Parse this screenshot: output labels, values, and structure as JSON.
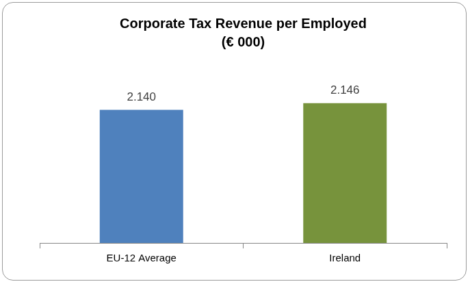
{
  "chart_data": {
    "type": "bar",
    "title": [
      "Corporate Tax Revenue per Employed",
      "(€ 000)"
    ],
    "categories": [
      "EU-12 Average",
      "Ireland"
    ],
    "values": [
      2.14,
      2.146
    ],
    "value_labels": [
      "2.140",
      "2.146"
    ],
    "colors": [
      "#4f81bd",
      "#77933c"
    ],
    "ylim": [
      2.02,
      2.16
    ],
    "grid": false,
    "data_labels": true,
    "tick_labels": "x"
  }
}
